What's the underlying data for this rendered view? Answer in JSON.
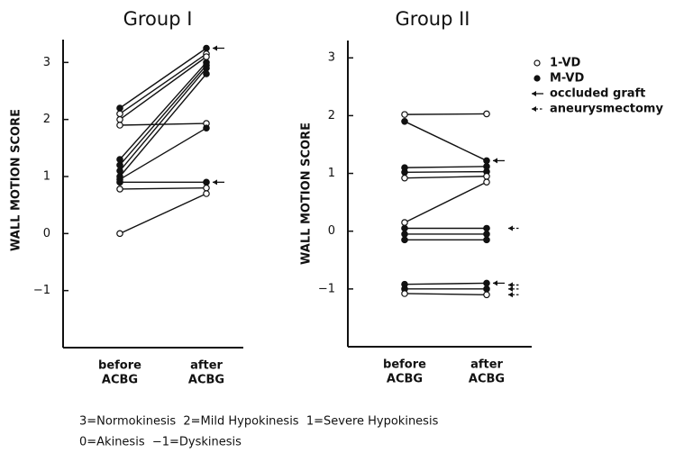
{
  "chart_data": [
    {
      "type": "line",
      "title": "Group I",
      "ylabel": "WALL MOTION SCORE",
      "categories": [
        [
          "before",
          "ACBG"
        ],
        [
          "after",
          "ACBG"
        ]
      ],
      "ylim": [
        -2,
        3.4
      ],
      "yticks": [
        {
          "value": -1,
          "label": "−1"
        },
        0,
        1,
        2,
        3
      ],
      "series": [
        {
          "marker": "filled",
          "occluded": true,
          "values": [
            2.2,
            3.25
          ]
        },
        {
          "marker": "open",
          "values": [
            2.1,
            3.15
          ]
        },
        {
          "marker": "open",
          "values": [
            2.0,
            3.1
          ]
        },
        {
          "marker": "open",
          "values": [
            1.9,
            1.93
          ]
        },
        {
          "marker": "filled",
          "values": [
            1.3,
            3.0
          ]
        },
        {
          "marker": "filled",
          "values": [
            1.2,
            2.95
          ]
        },
        {
          "marker": "filled",
          "values": [
            1.1,
            2.9
          ]
        },
        {
          "marker": "filled",
          "values": [
            1.0,
            2.8
          ]
        },
        {
          "marker": "filled",
          "values": [
            0.95,
            1.85
          ]
        },
        {
          "marker": "filled",
          "occluded": true,
          "values": [
            0.9,
            0.9
          ]
        },
        {
          "marker": "open",
          "values": [
            0.78,
            0.8
          ]
        },
        {
          "marker": "open",
          "values": [
            0,
            0.7
          ]
        }
      ]
    },
    {
      "type": "line",
      "title": "Group II",
      "ylabel": "WALL MOTION SCORE",
      "categories": [
        [
          "before",
          "ACBG"
        ],
        [
          "after",
          "ACBG"
        ]
      ],
      "ylim": [
        -2,
        3.3
      ],
      "yticks": [
        {
          "value": -1,
          "label": "−1"
        },
        0,
        1,
        2,
        3
      ],
      "series": [
        {
          "marker": "open",
          "values": [
            2.02,
            2.03
          ]
        },
        {
          "marker": "filled",
          "occluded": true,
          "values": [
            1.9,
            1.22
          ]
        },
        {
          "marker": "filled",
          "values": [
            1.1,
            1.12
          ]
        },
        {
          "marker": "filled",
          "values": [
            1.02,
            1.03
          ]
        },
        {
          "marker": "open",
          "values": [
            0.92,
            0.95
          ]
        },
        {
          "marker": "open",
          "values": [
            0.15,
            0.85
          ]
        },
        {
          "marker": "filled",
          "aneurysmectomy": true,
          "values": [
            0.05,
            0.05
          ]
        },
        {
          "marker": "filled",
          "values": [
            -0.05,
            -0.05
          ]
        },
        {
          "marker": "filled",
          "values": [
            -0.15,
            -0.15
          ]
        },
        {
          "marker": "filled",
          "occluded": true,
          "aneurysmectomy": true,
          "values": [
            -0.92,
            -0.9
          ]
        },
        {
          "marker": "filled",
          "aneurysmectomy": true,
          "values": [
            -1.0,
            -1.0
          ]
        },
        {
          "marker": "open",
          "aneurysmectomy": true,
          "values": [
            -1.08,
            -1.1
          ]
        }
      ],
      "legend": [
        {
          "label": "1-VD",
          "symbol": "open"
        },
        {
          "label": "M-VD",
          "symbol": "filled"
        },
        {
          "label": "occluded graft",
          "symbol": "arrow"
        },
        {
          "label": "aneurysmectomy",
          "symbol": "dashed-arrow"
        }
      ]
    }
  ],
  "notes": [
    "3=Normokinesis  2=Mild Hypokinesis  1=Severe Hypokinesis",
    "0=Akinesis  −1=Dyskinesis"
  ]
}
